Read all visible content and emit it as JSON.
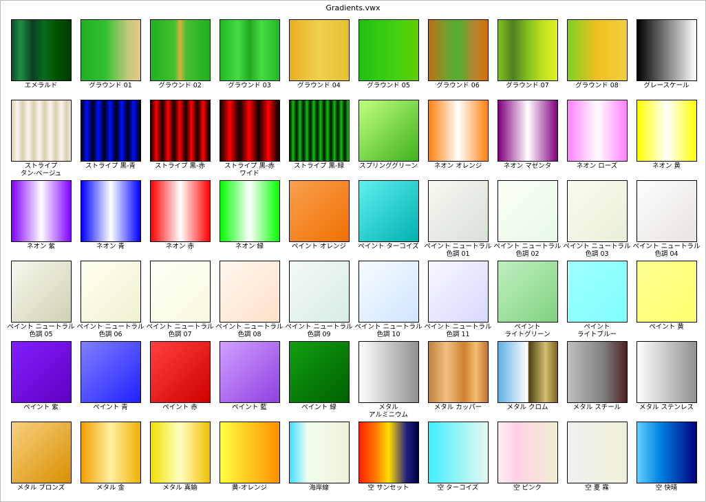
{
  "window_title": "Gradients.vwx",
  "swatches": [
    {
      "label": "エメラルド",
      "bg": "linear-gradient(to right,#0d4d2a,#1e8f4a 15%,#0a4020 35%,#0a6a20 55%,#005500 75%,#003a00)"
    },
    {
      "label": "グラウンド 01",
      "bg": "linear-gradient(to right,#22b022,#30c030 40%,#c8c880 80%,#e8c880)"
    },
    {
      "label": "グラウンド 02",
      "bg": "linear-gradient(to right,#20b020,#44c030 40%,#d8b040 50%,#44c030 60%,#20b020)"
    },
    {
      "label": "グラウンド 03",
      "bg": "linear-gradient(to right,#22b822,#44dd44 30%,#22a822 50%,#44dd44 70%,#22b822)"
    },
    {
      "label": "グラウンド 04",
      "bg": "linear-gradient(to right,#e8b020,#f0d050 50%,#e8c030)"
    },
    {
      "label": "グラウンド 05",
      "bg": "linear-gradient(to right,#20c010,#40d010 60%,#60d000)"
    },
    {
      "label": "グラウンド 06",
      "bg": "linear-gradient(to right,#c07010,#70a030 30%,#50b030 50%,#c08030 80%,#d07000)"
    },
    {
      "label": "グラウンド 07",
      "bg": "linear-gradient(to right,#80c020,#508020 25%,#80c020 50%,#c0e020 75%,#e0f020)"
    },
    {
      "label": "グラウンド 08",
      "bg": "linear-gradient(to right,#80d020,#f0c020 50%,#f0d040)"
    },
    {
      "label": "グレースケール",
      "bg": "linear-gradient(to right,#000,#fff)"
    },
    {
      "label": "ストライプ\nタン-ベージュ",
      "bg": "repeating-linear-gradient(to right,#d8d0b0 0,#f8f4e8 8px,#d8d0b0 16px)"
    },
    {
      "label": "ストライプ 黒-青",
      "bg": "repeating-linear-gradient(to right,#000010 0,#0010ff 8px,#000010 17px)"
    },
    {
      "label": "ストライプ 黒-赤",
      "bg": "repeating-linear-gradient(to right,#100000 0,#ff0000 8px,#100000 17px)"
    },
    {
      "label": "ストライプ 黒-赤\nワイド",
      "bg": "repeating-linear-gradient(to right,#100000 0,#ff0000 14px,#100000 28px)"
    },
    {
      "label": "ストライプ 黒-緑",
      "bg": "repeating-linear-gradient(to right,#001000 0,#10c010 5px,#001000 10px)"
    },
    {
      "label": "スプリンググリーン",
      "bg": "linear-gradient(135deg,#c0ff80,#40b020)"
    },
    {
      "label": "ネオン オレンジ",
      "bg": "linear-gradient(to right,#ff8010,#fff 50%,#ff8010)"
    },
    {
      "label": "ネオン マゼンタ",
      "bg": "linear-gradient(to right,#800080,#fff 50%,#800080)"
    },
    {
      "label": "ネオン ローズ",
      "bg": "linear-gradient(to right,#ff80ff,#fff 50%,#ff80ff)"
    },
    {
      "label": "ネオン 黄",
      "bg": "linear-gradient(to right,#ffff00,#fff 50%,#ffff00)"
    },
    {
      "label": "ネオン 紫",
      "bg": "linear-gradient(to right,#8000ff,#fff 50%,#8000ff)"
    },
    {
      "label": "ネオン 青",
      "bg": "linear-gradient(to right,#0000ff,#fff 50%,#0000ff)"
    },
    {
      "label": "ネオン 赤",
      "bg": "linear-gradient(to right,#ff0000,#fff 50%,#ff0000)"
    },
    {
      "label": "ネオン 緑",
      "bg": "linear-gradient(to right,#00ff00,#fff 50%,#00ff00)"
    },
    {
      "label": "ペイント オレンジ",
      "bg": "linear-gradient(135deg,#f8a050,#f07000)"
    },
    {
      "label": "ペイント ターコイズ",
      "bg": "linear-gradient(135deg,#60f0f0,#00b0b0)"
    },
    {
      "label": "ペイント ニュートラル\n色調 01",
      "bg": "linear-gradient(135deg,#f8f8f0,#d8e0d8)"
    },
    {
      "label": "ペイント ニュートラル\n色調 02",
      "bg": "linear-gradient(135deg,#fafff5,#e8f8e8)"
    },
    {
      "label": "ペイント ニュートラル\n色調 03",
      "bg": "linear-gradient(135deg,#fafaf0,#e8f0d8)"
    },
    {
      "label": "ペイント ニュートラル\n色調 04",
      "bg": "linear-gradient(135deg,#fcfcfc,#e8e4e0)"
    },
    {
      "label": "ペイント ニュートラル\n色調 05",
      "bg": "linear-gradient(135deg,#f8f8f0,#d0d0b0)"
    },
    {
      "label": "ペイント ニュートラル\n色調 06",
      "bg": "linear-gradient(135deg,#fffff0,#f0f0d0)"
    },
    {
      "label": "ペイント ニュートラル\n色調 07",
      "bg": "linear-gradient(135deg,#fffff8,#f8f8e0)"
    },
    {
      "label": "ペイント ニュートラル\n色調 08",
      "bg": "linear-gradient(135deg,#fff8f0,#ffe0c8)"
    },
    {
      "label": "ペイント ニュートラル\n色調 09",
      "bg": "linear-gradient(135deg,#f4f8f8,#d8ece8)"
    },
    {
      "label": "ペイント ニュートラル\n色調 10",
      "bg": "linear-gradient(135deg,#f8fcff,#d0e4ff)"
    },
    {
      "label": "ペイント ニュートラル\n色調 11",
      "bg": "linear-gradient(135deg,#f8f8ff,#d8d8ff)"
    },
    {
      "label": "ペイント\nライトグリーン",
      "bg": "linear-gradient(135deg,#c0f0c0,#80d080)"
    },
    {
      "label": "ペイント\nライトブルー",
      "bg": "linear-gradient(135deg,#a0ffff,#80ffff)"
    },
    {
      "label": "ペイント 黄",
      "bg": "linear-gradient(135deg,#ffff90,#ffff70)"
    },
    {
      "label": "ペイント 紫",
      "bg": "linear-gradient(135deg,#8020ff,#6000c0)"
    },
    {
      "label": "ペイント 青",
      "bg": "linear-gradient(135deg,#8080ff,#2020ff)"
    },
    {
      "label": "ペイント 赤",
      "bg": "linear-gradient(135deg,#ff4040,#d00000)"
    },
    {
      "label": "ペイント 藍",
      "bg": "linear-gradient(135deg,#d0a0ff,#9040e0)"
    },
    {
      "label": "ペイント 緑",
      "bg": "linear-gradient(135deg,#10a010,#006000)"
    },
    {
      "label": "メタル\nアルミニウム",
      "bg": "linear-gradient(to right,#fff,#909090)"
    },
    {
      "label": "メタル カッパー",
      "bg": "linear-gradient(to right,#c08040,#f0c080 30%,#d08030 60%,#f0c070 80%,#c07030)"
    },
    {
      "label": "メタル クロム",
      "bg": "linear-gradient(to right,#60b0e0,#fff 50%,#504010 52%,#d0c070 80%,#806020)"
    },
    {
      "label": "メタル スチール",
      "bg": "linear-gradient(to right,#c0c0c0,#808080 60%,#502020)"
    },
    {
      "label": "メタル ステンレス",
      "bg": "linear-gradient(to right,#fff,#909090)"
    },
    {
      "label": "メタル ブロンズ",
      "bg": "linear-gradient(135deg,#f8d080,#d89000)"
    },
    {
      "label": "メタル 金",
      "bg": "linear-gradient(to right,#f0a000,#fff0a0 50%,#f0b000)"
    },
    {
      "label": "メタル 真鍮",
      "bg": "linear-gradient(to right,#f0e000,#ffffc0 50%,#f0c000)"
    },
    {
      "label": "黄-オレンジ",
      "bg": "linear-gradient(to right,#ffff40,#ff9000)"
    },
    {
      "label": "海岸線",
      "bg": "linear-gradient(to right,#40e0ff,#f0fff0 30%,#f0f0d8)"
    },
    {
      "label": "空 サンセット",
      "bg": "linear-gradient(to right,#ff2000,#ff8000 30%,#ffe000 50%,#202080 80%,#000040)"
    },
    {
      "label": "空 ターコイズ",
      "bg": "linear-gradient(to right,#40f0ff,#e8f8f0)"
    },
    {
      "label": "空 ピンク",
      "bg": "linear-gradient(to right,#fff0f0,#ffd0e8 30%,#f0f0d0)"
    },
    {
      "label": "空 夏 霧",
      "bg": "linear-gradient(to right,#f0f0f0,#f0f0d8)"
    },
    {
      "label": "空 快晴",
      "bg": "linear-gradient(to right,#60d0ff,#0080e0 40%,#000080)"
    }
  ]
}
